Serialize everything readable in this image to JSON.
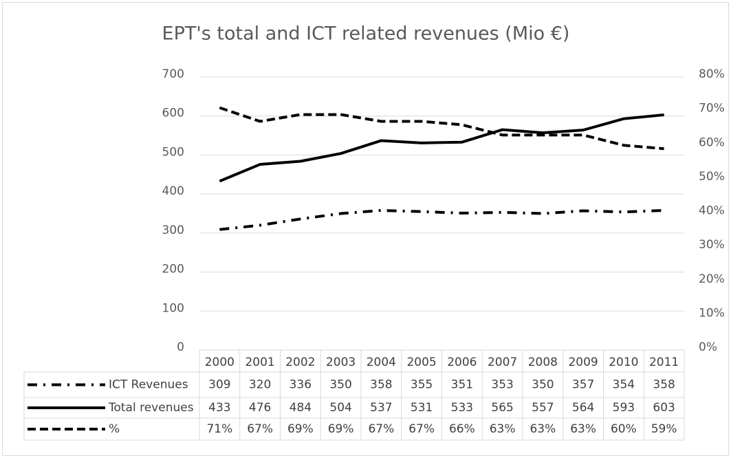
{
  "chart_data": {
    "type": "line",
    "title": "EPT's total and ICT related revenues (Mio €)",
    "categories": [
      "2000",
      "2001",
      "2002",
      "2003",
      "2004",
      "2005",
      "2006",
      "2007",
      "2008",
      "2009",
      "2010",
      "2011"
    ],
    "series": [
      {
        "name": "ICT Revenues",
        "color": "#000000",
        "dash": "dash-dot",
        "values": [
          309,
          320,
          336,
          350,
          358,
          355,
          351,
          353,
          350,
          357,
          354,
          358
        ]
      },
      {
        "name": "Total revenues",
        "color": "#000000",
        "dash": "solid",
        "values": [
          433,
          476,
          484,
          504,
          537,
          531,
          533,
          565,
          557,
          564,
          593,
          603
        ]
      },
      {
        "name": "%",
        "color": "#000000",
        "dash": "dashed",
        "axis": "y2",
        "values": [
          71,
          67,
          69,
          69,
          67,
          67,
          66,
          63,
          63,
          63,
          60,
          59
        ],
        "value_labels": [
          "71%",
          "67%",
          "69%",
          "69%",
          "67%",
          "67%",
          "66%",
          "63%",
          "63%",
          "63%",
          "60%",
          "59%"
        ]
      }
    ],
    "ylim": [
      0,
      700
    ],
    "yticks": [
      0,
      100,
      200,
      300,
      400,
      500,
      600,
      700
    ],
    "y2lim": [
      0,
      80
    ],
    "y2ticks": [
      {
        "value": 0,
        "label": "0%"
      },
      {
        "value": 10,
        "label": "10%"
      },
      {
        "value": 20,
        "label": "20%"
      },
      {
        "value": 30,
        "label": "30%"
      },
      {
        "value": 40,
        "label": "40%"
      },
      {
        "value": 50,
        "label": "50%"
      },
      {
        "value": 60,
        "label": "60%"
      },
      {
        "value": 70,
        "label": "70%"
      },
      {
        "value": 80,
        "label": "80%"
      }
    ],
    "grid": true,
    "data_table": true
  }
}
